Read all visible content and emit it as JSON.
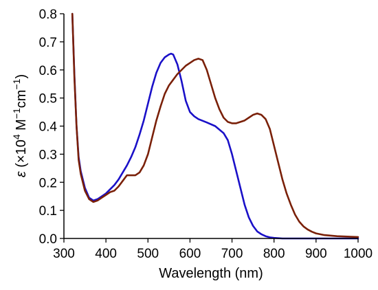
{
  "chart_data": {
    "type": "line",
    "title": "",
    "xlabel": "Wavelength (nm)",
    "ylabel": {
      "symbol": "ε",
      "open": " (×10",
      "exp1": "4",
      "unit_m": " M",
      "exp2": "−1",
      "unit_cm": "cm",
      "exp3": "−1",
      "close": ")"
    },
    "xlim": [
      300,
      1000
    ],
    "ylim": [
      0,
      0.8
    ],
    "x_ticks": [
      300,
      400,
      500,
      600,
      700,
      800,
      900,
      1000
    ],
    "x_tick_labels": [
      "300",
      "400",
      "500",
      "600",
      "700",
      "800",
      "900",
      "1000"
    ],
    "y_ticks": [
      0.0,
      0.1,
      0.2,
      0.3,
      0.4,
      0.5,
      0.6,
      0.7,
      0.8
    ],
    "y_tick_labels": [
      "0.0",
      "0.1",
      "0.2",
      "0.3",
      "0.4",
      "0.5",
      "0.6",
      "0.7",
      "0.8"
    ],
    "grid": false,
    "legend": "none",
    "series": [
      {
        "color": "#1a10c8",
        "x": [
          320,
          325,
          330,
          335,
          340,
          350,
          360,
          370,
          380,
          390,
          400,
          410,
          420,
          430,
          440,
          450,
          460,
          470,
          480,
          490,
          500,
          510,
          520,
          530,
          540,
          550,
          555,
          560,
          570,
          580,
          590,
          600,
          610,
          620,
          640,
          660,
          680,
          690,
          700,
          710,
          720,
          730,
          740,
          750,
          760,
          770,
          780,
          790,
          800,
          820,
          850,
          900,
          950,
          1000
        ],
        "y": [
          0.8,
          0.58,
          0.4,
          0.29,
          0.24,
          0.18,
          0.145,
          0.135,
          0.14,
          0.15,
          0.16,
          0.175,
          0.19,
          0.21,
          0.235,
          0.26,
          0.29,
          0.325,
          0.37,
          0.42,
          0.48,
          0.54,
          0.59,
          0.625,
          0.645,
          0.655,
          0.658,
          0.655,
          0.62,
          0.56,
          0.49,
          0.45,
          0.435,
          0.425,
          0.413,
          0.4,
          0.375,
          0.35,
          0.3,
          0.24,
          0.18,
          0.12,
          0.075,
          0.045,
          0.025,
          0.015,
          0.008,
          0.004,
          0.002,
          0.0,
          0.0,
          0.0,
          0.0,
          0.0
        ]
      },
      {
        "color": "#7a2008",
        "x": [
          320,
          325,
          330,
          335,
          340,
          350,
          360,
          370,
          380,
          390,
          400,
          410,
          420,
          430,
          440,
          450,
          460,
          470,
          480,
          490,
          500,
          510,
          520,
          530,
          540,
          550,
          560,
          570,
          580,
          590,
          600,
          610,
          620,
          630,
          640,
          650,
          660,
          670,
          680,
          690,
          700,
          710,
          720,
          730,
          740,
          750,
          760,
          770,
          780,
          790,
          800,
          810,
          820,
          830,
          840,
          850,
          860,
          870,
          880,
          890,
          900,
          920,
          950,
          1000
        ],
        "y": [
          0.8,
          0.57,
          0.4,
          0.28,
          0.23,
          0.17,
          0.14,
          0.13,
          0.135,
          0.145,
          0.155,
          0.165,
          0.17,
          0.185,
          0.205,
          0.225,
          0.225,
          0.225,
          0.235,
          0.26,
          0.3,
          0.36,
          0.42,
          0.47,
          0.515,
          0.545,
          0.565,
          0.585,
          0.6,
          0.615,
          0.625,
          0.635,
          0.64,
          0.635,
          0.6,
          0.55,
          0.5,
          0.46,
          0.43,
          0.415,
          0.41,
          0.41,
          0.415,
          0.42,
          0.43,
          0.44,
          0.445,
          0.44,
          0.425,
          0.39,
          0.33,
          0.27,
          0.21,
          0.16,
          0.12,
          0.085,
          0.06,
          0.043,
          0.032,
          0.024,
          0.018,
          0.012,
          0.008,
          0.005
        ]
      }
    ]
  }
}
